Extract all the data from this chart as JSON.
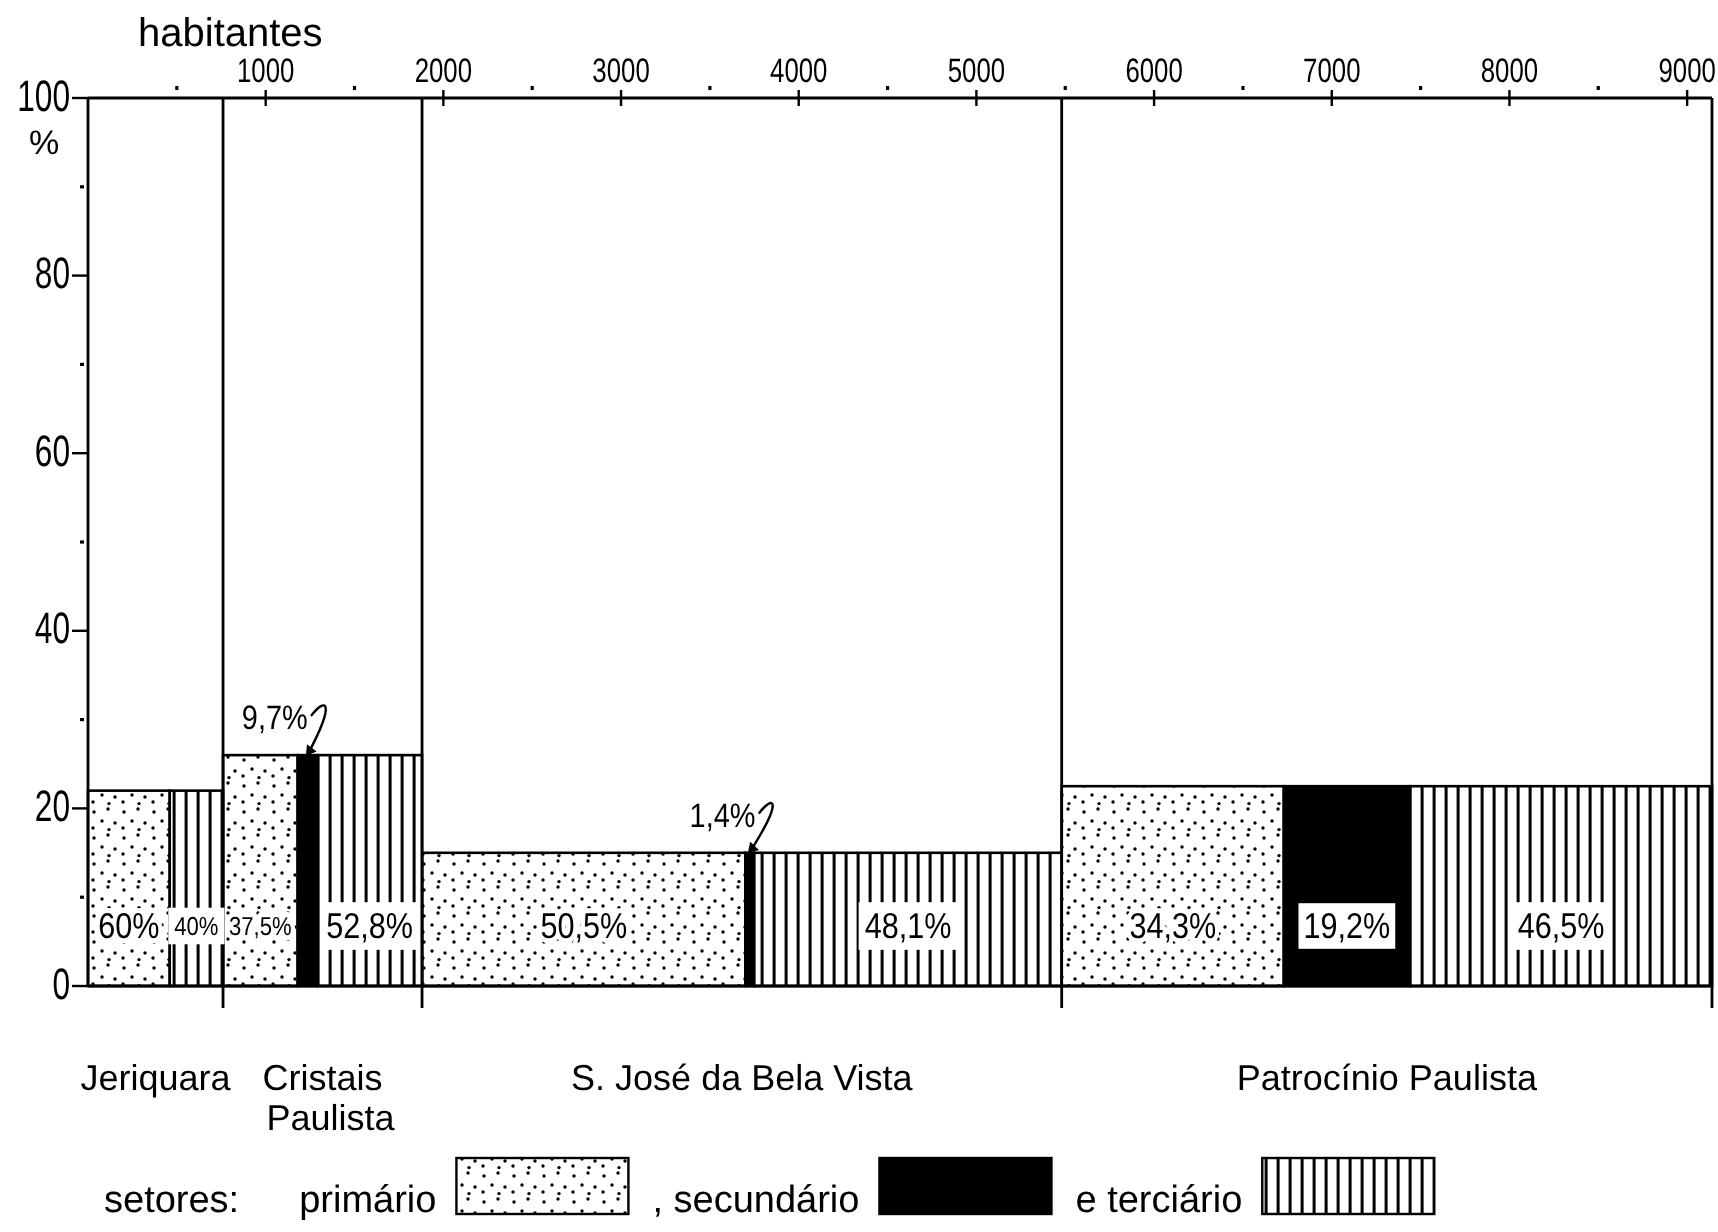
{
  "chart_data": {
    "type": "histogram",
    "xlabel": "habitantes",
    "ylabel": "%",
    "legend_title": "setores:",
    "bins": [
      0,
      460,
      760,
      1180,
      1290,
      1880,
      3700,
      3750,
      5480,
      6730,
      7440,
      9140
    ],
    "series": [
      {
        "name": "primário",
        "color": "#000000",
        "values": [
          22,
          null,
          26,
          null,
          null,
          15,
          null,
          null,
          22.5,
          null,
          null
        ]
      },
      {
        "name": ", secundário",
        "color": "#000000",
        "values": [
          null,
          null,
          null,
          26,
          null,
          null,
          15,
          null,
          null,
          22.5,
          null
        ]
      },
      {
        "name": "e terciário",
        "color": "#000000",
        "values": [
          null,
          22,
          null,
          null,
          26,
          null,
          null,
          15,
          null,
          null,
          22.5
        ]
      }
    ],
    "xlim": [
      0,
      9140
    ],
    "xticks": [
      {
        "value": 500,
        "label": null
      },
      1000,
      {
        "value": 1500,
        "label": null
      },
      2000,
      {
        "value": 2500,
        "label": null
      },
      3000,
      {
        "value": 3500,
        "label": null
      },
      4000,
      {
        "value": 4500,
        "label": null
      },
      5000,
      {
        "value": 5500,
        "label": null
      },
      6000,
      {
        "value": 6500,
        "label": null
      },
      7000,
      {
        "value": 7500,
        "label": null
      },
      8000,
      {
        "value": 8500,
        "label": null
      },
      9000
    ],
    "ylim": [
      0,
      100
    ],
    "yticks": [
      0,
      {
        "value": 10,
        "label": null
      },
      20,
      {
        "value": 30,
        "label": null
      },
      40,
      {
        "value": 50,
        "label": null
      },
      60,
      {
        "value": 70,
        "label": null
      },
      80,
      {
        "value": 90,
        "label": null
      },
      100
    ],
    "legend": "bottom",
    "annotations": [
      {
        "text": "9,7%",
        "x": 1235,
        "y": 26
      },
      {
        "text": "1,4%",
        "x": 3725,
        "y": 15
      },
      "60%",
      "40%",
      "37,5%",
      "52,8%",
      "50,5%",
      "48,1%",
      "34,3%",
      "19,2%",
      "46,5%",
      "Jeriquara",
      "Cristais Paulista",
      "S. José da Bela Vista",
      "Patrocínio Paulista"
    ]
  }
}
